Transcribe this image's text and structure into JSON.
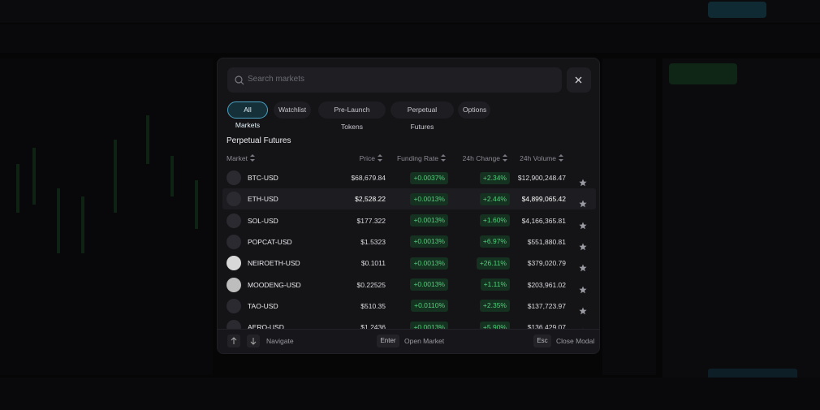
{
  "search": {
    "placeholder": "Search markets"
  },
  "tabs": [
    "All Markets",
    "Watchlist",
    "Pre-Launch Tokens",
    "Perpetual Futures",
    "Options"
  ],
  "section_title": "Perpetual Futures",
  "columns": [
    "Market",
    "Price",
    "Funding Rate",
    "24h Change",
    "24h Volume"
  ],
  "rows": [
    [
      "BTC-USD",
      "$68,679.84",
      "+0.0037%",
      "+2.34%",
      "$12,900,248.47"
    ],
    [
      "ETH-USD",
      "$2,528.22",
      "+0.0013%",
      "+2.44%",
      "$4,899,065.42"
    ],
    [
      "SOL-USD",
      "$177.322",
      "+0.0013%",
      "+1.60%",
      "$4,166,365.81"
    ],
    [
      "POPCAT-USD",
      "$1.5323",
      "+0.0013%",
      "+6.97%",
      "$551,880.81"
    ],
    [
      "NEIROETH-USD",
      "$0.1011",
      "+0.0013%",
      "+26.11%",
      "$379,020.79"
    ],
    [
      "MOODENG-USD",
      "$0.22525",
      "+0.0013%",
      "+1.11%",
      "$203,961.02"
    ],
    [
      "TAO-USD",
      "$510.35",
      "+0.0110%",
      "+2.35%",
      "$137,723.97"
    ],
    [
      "AERO-USD",
      "$1.2436",
      "+0.0013%",
      "+5.90%",
      "$136,429.07"
    ]
  ],
  "footer": {
    "navigate": "Navigate",
    "enter_key": "Enter",
    "enter_action": "Open Market",
    "esc_key": "Esc",
    "esc_action": "Close Modal"
  }
}
